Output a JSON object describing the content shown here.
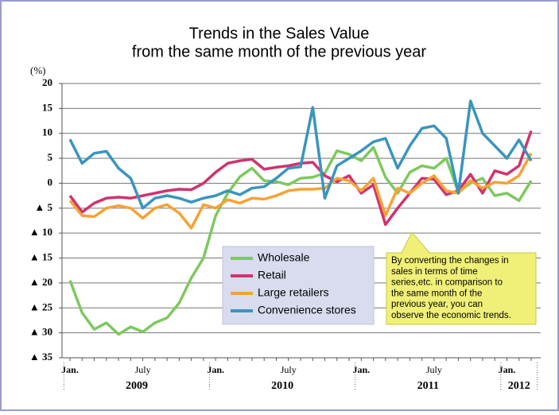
{
  "chart_data": {
    "type": "line",
    "title_lines": [
      "Trends in the Sales Value",
      "from the same month of the previous year"
    ],
    "y_label": "(%)",
    "categories": [
      "Jan.",
      null,
      null,
      null,
      null,
      null,
      "July",
      null,
      null,
      null,
      null,
      null,
      "Jan.",
      null,
      null,
      null,
      null,
      null,
      "July",
      null,
      null,
      null,
      null,
      null,
      "Jan.",
      null,
      null,
      null,
      null,
      null,
      "July",
      null,
      null,
      null,
      null,
      null,
      "Jan.",
      null,
      null
    ],
    "years": [
      "2009",
      "2010",
      "2011",
      "2012"
    ],
    "ylim": [
      -35,
      20
    ],
    "yticks": [
      20,
      15,
      10,
      5,
      0,
      {
        "value": -5,
        "label": "▲ 5"
      },
      {
        "value": -10,
        "label": "▲ 10"
      },
      {
        "value": -15,
        "label": "▲ 15"
      },
      {
        "value": -20,
        "label": "▲ 20"
      },
      {
        "value": -25,
        "label": "▲ 25"
      },
      {
        "value": -30,
        "label": "▲ 30"
      },
      {
        "value": -35,
        "label": "▲ 35"
      }
    ],
    "grid": true,
    "series": [
      {
        "name": "Wholesale",
        "color": "#7dc95e",
        "values": [
          -19.5,
          -26,
          -29.3,
          -28,
          -30.3,
          -28.8,
          -29.8,
          -28,
          -27,
          -24,
          -19,
          -15,
          -6.5,
          -2,
          1.3,
          3,
          0.5,
          0.3,
          -0.3,
          1,
          1.2,
          2,
          6.5,
          5.8,
          4.5,
          7.2,
          1.2,
          -2,
          2.2,
          3.5,
          3,
          5,
          -1.8,
          0,
          1,
          -2.5,
          -2,
          -3.5,
          0.5
        ]
      },
      {
        "name": "Retail",
        "color": "#d0336e",
        "values": [
          -2.5,
          -5.8,
          -4,
          -3,
          -2.8,
          -3,
          -2.5,
          -2,
          -1.5,
          -1.2,
          -1.3,
          0,
          2.2,
          4,
          4.5,
          4.8,
          2.8,
          3.2,
          3.5,
          4,
          4.2,
          1.5,
          0.3,
          1.5,
          -2,
          -0.3,
          -8.3,
          -5,
          -2,
          1,
          0.8,
          -2.3,
          -1.5,
          1.8,
          -2,
          2.5,
          1.8,
          3.5,
          10.5
        ]
      },
      {
        "name": "Large retailers",
        "color": "#f7a234",
        "values": [
          -3.5,
          -6.5,
          -6.7,
          -5,
          -4.5,
          -5,
          -7,
          -5,
          -4.3,
          -6,
          -9,
          -4.3,
          -5,
          -3.3,
          -4,
          -3,
          -3.2,
          -2.5,
          -1.5,
          -1.2,
          -1.2,
          -1,
          1,
          0.5,
          -1.5,
          1,
          -6.5,
          -1,
          -2,
          0,
          1.5,
          -1.5,
          -2,
          0.5,
          -1,
          0.2,
          0,
          1.5,
          6
        ]
      },
      {
        "name": "Convenience stores",
        "color": "#3a95be",
        "values": [
          8.8,
          4,
          6,
          6.4,
          3,
          1,
          -5,
          -3,
          -2.5,
          -3,
          -3.8,
          -3,
          -2.5,
          -1.5,
          -2.3,
          -1,
          -0.7,
          1,
          3,
          3.3,
          15.2,
          -3,
          3.5,
          5,
          6.5,
          8.3,
          9,
          3,
          7.5,
          11,
          11.5,
          9,
          -2,
          16.5,
          10,
          7.5,
          5,
          8.7,
          4.5
        ]
      }
    ],
    "annotation_lines": [
      "By converting the changes in",
      "sales in terms of time",
      "series,etc. in comparison to",
      "the same month of the",
      "previous year, you can",
      "observe the economic trends."
    ]
  }
}
